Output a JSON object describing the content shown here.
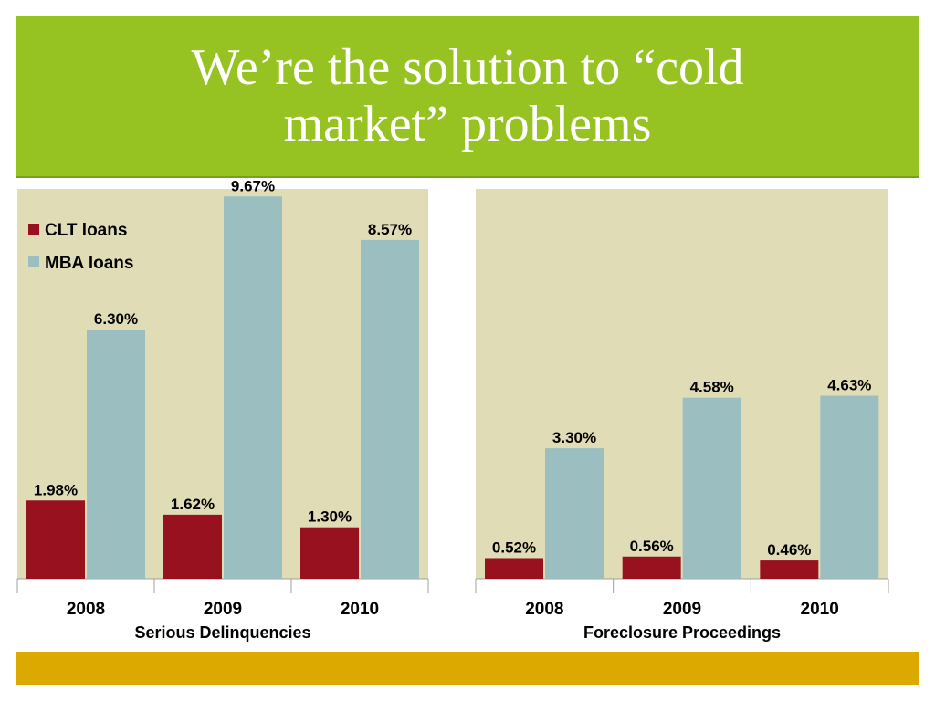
{
  "slide": {
    "title": "We’re the solution to “cold market” problems",
    "colors": {
      "banner": "#96c322",
      "bottom_bar": "#dca900",
      "plot_bg": "#e0dcb6",
      "clt": "#98111f",
      "mba": "#9bbfc0"
    }
  },
  "chart_data": [
    {
      "type": "bar",
      "categories": [
        "2008",
        "2009",
        "2010"
      ],
      "xlabel": "Serious Delinquencies",
      "ylabel": "",
      "ylim": [
        0,
        10
      ],
      "legend_position": "top-left",
      "series": [
        {
          "name": "CLT loans",
          "values": [
            1.98,
            1.62,
            1.3
          ],
          "labels": [
            "1.98%",
            "1.62%",
            "1.30%"
          ],
          "color": "#98111f"
        },
        {
          "name": "MBA loans",
          "values": [
            6.3,
            9.67,
            8.57
          ],
          "labels": [
            "6.30%",
            "9.67%",
            "8.57%"
          ],
          "color": "#9bbfc0"
        }
      ]
    },
    {
      "type": "bar",
      "categories": [
        "2008",
        "2009",
        "2010"
      ],
      "xlabel": "Foreclosure Proceedings",
      "ylabel": "",
      "ylim": [
        0,
        10
      ],
      "series": [
        {
          "name": "",
          "values": [
            0.52,
            0.56,
            0.46
          ],
          "labels": [
            "0.52%",
            "0.56%",
            "0.46%"
          ],
          "color": "#98111f"
        },
        {
          "name": "",
          "values": [
            3.3,
            4.58,
            4.63
          ],
          "labels": [
            "3.30%",
            "4.58%",
            "4.63%"
          ],
          "color": "#9bbfc0"
        }
      ]
    }
  ]
}
